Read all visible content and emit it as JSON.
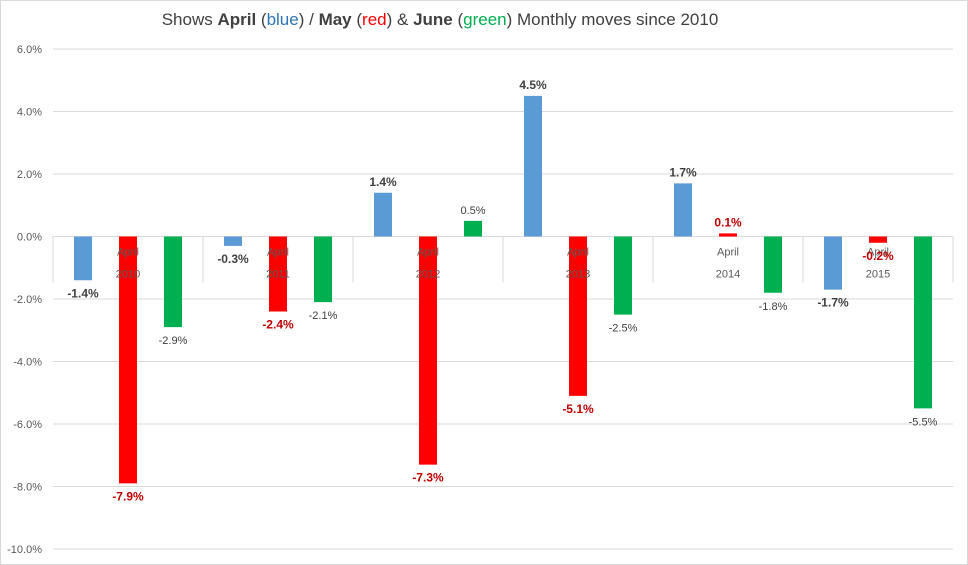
{
  "title": {
    "prefix": "Shows ",
    "april": "April",
    "blue": "blue",
    "may": "May",
    "red": "red",
    "june": "June",
    "green": "green",
    "suffix": " Monthly moves since 2010"
  },
  "colors": {
    "april": "#5b9bd5",
    "may": "#ff0000",
    "june": "#00b050",
    "grid": "#d9d9d9",
    "label_dark": "#404040",
    "label_red": "#c00000"
  },
  "chart_data": {
    "type": "bar",
    "categories": [
      {
        "month": "April",
        "year": "2010"
      },
      {
        "month": "April",
        "year": "2011"
      },
      {
        "month": "April",
        "year": "2012"
      },
      {
        "month": "April",
        "year": "2013"
      },
      {
        "month": "April",
        "year": "2014"
      },
      {
        "month": "April",
        "year": "2015"
      }
    ],
    "series": [
      {
        "name": "April",
        "values": [
          -1.4,
          -0.3,
          1.4,
          4.5,
          1.7,
          -1.7
        ],
        "labels": [
          "-1.4%",
          "-0.3%",
          "1.4%",
          "4.5%",
          "1.7%",
          "-1.7%"
        ]
      },
      {
        "name": "May",
        "values": [
          -7.9,
          -2.4,
          -7.3,
          -5.1,
          0.1,
          -0.2
        ],
        "labels": [
          "-7.9%",
          "-2.4%",
          "-7.3%",
          "-5.1%",
          "0.1%",
          "-0.2%"
        ]
      },
      {
        "name": "June",
        "values": [
          -2.9,
          -2.1,
          0.5,
          -2.5,
          -1.8,
          -5.5
        ],
        "labels": [
          "-2.9%",
          "-2.1%",
          "0.5%",
          "-2.5%",
          "-1.8%",
          "-5.5%"
        ]
      }
    ],
    "ylim": [
      -10,
      6
    ],
    "ytick_values": [
      6,
      4,
      2,
      0,
      -2,
      -4,
      -6,
      -8,
      -10
    ],
    "ytick_labels": [
      "6.0%",
      "4.0%",
      "2.0%",
      "0.0%",
      "-2.0%",
      "-4.0%",
      "-6.0%",
      "-8.0%",
      "-10.0%"
    ],
    "grid": true
  }
}
